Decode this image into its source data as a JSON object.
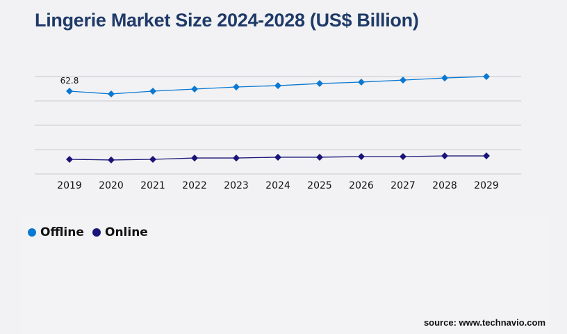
{
  "chart_data": {
    "type": "line",
    "title": "Lingerie Market Size 2024-2028 (US$ Billion)",
    "categories": [
      "2019",
      "2020",
      "2021",
      "2022",
      "2023",
      "2024",
      "2025",
      "2026",
      "2027",
      "2028",
      "2029"
    ],
    "series": [
      {
        "name": "Offline",
        "color": "#0a78d1",
        "values": [
          62.8,
          60.7,
          62.8,
          64.4,
          66.0,
          67.0,
          68.6,
          69.7,
          71.2,
          72.8,
          73.9
        ]
      },
      {
        "name": "Online",
        "color": "#1a1478",
        "values": [
          11.1,
          10.6,
          11.1,
          12.1,
          12.1,
          12.7,
          12.7,
          13.2,
          13.2,
          13.7,
          13.7
        ]
      }
    ],
    "data_labels": [
      {
        "series": "Offline",
        "category": "2019",
        "text": "62.8"
      }
    ],
    "ylim": [
      0,
      73.9
    ],
    "grid": true,
    "legend": "bottom-left"
  },
  "source": "source: www.technavio.com"
}
